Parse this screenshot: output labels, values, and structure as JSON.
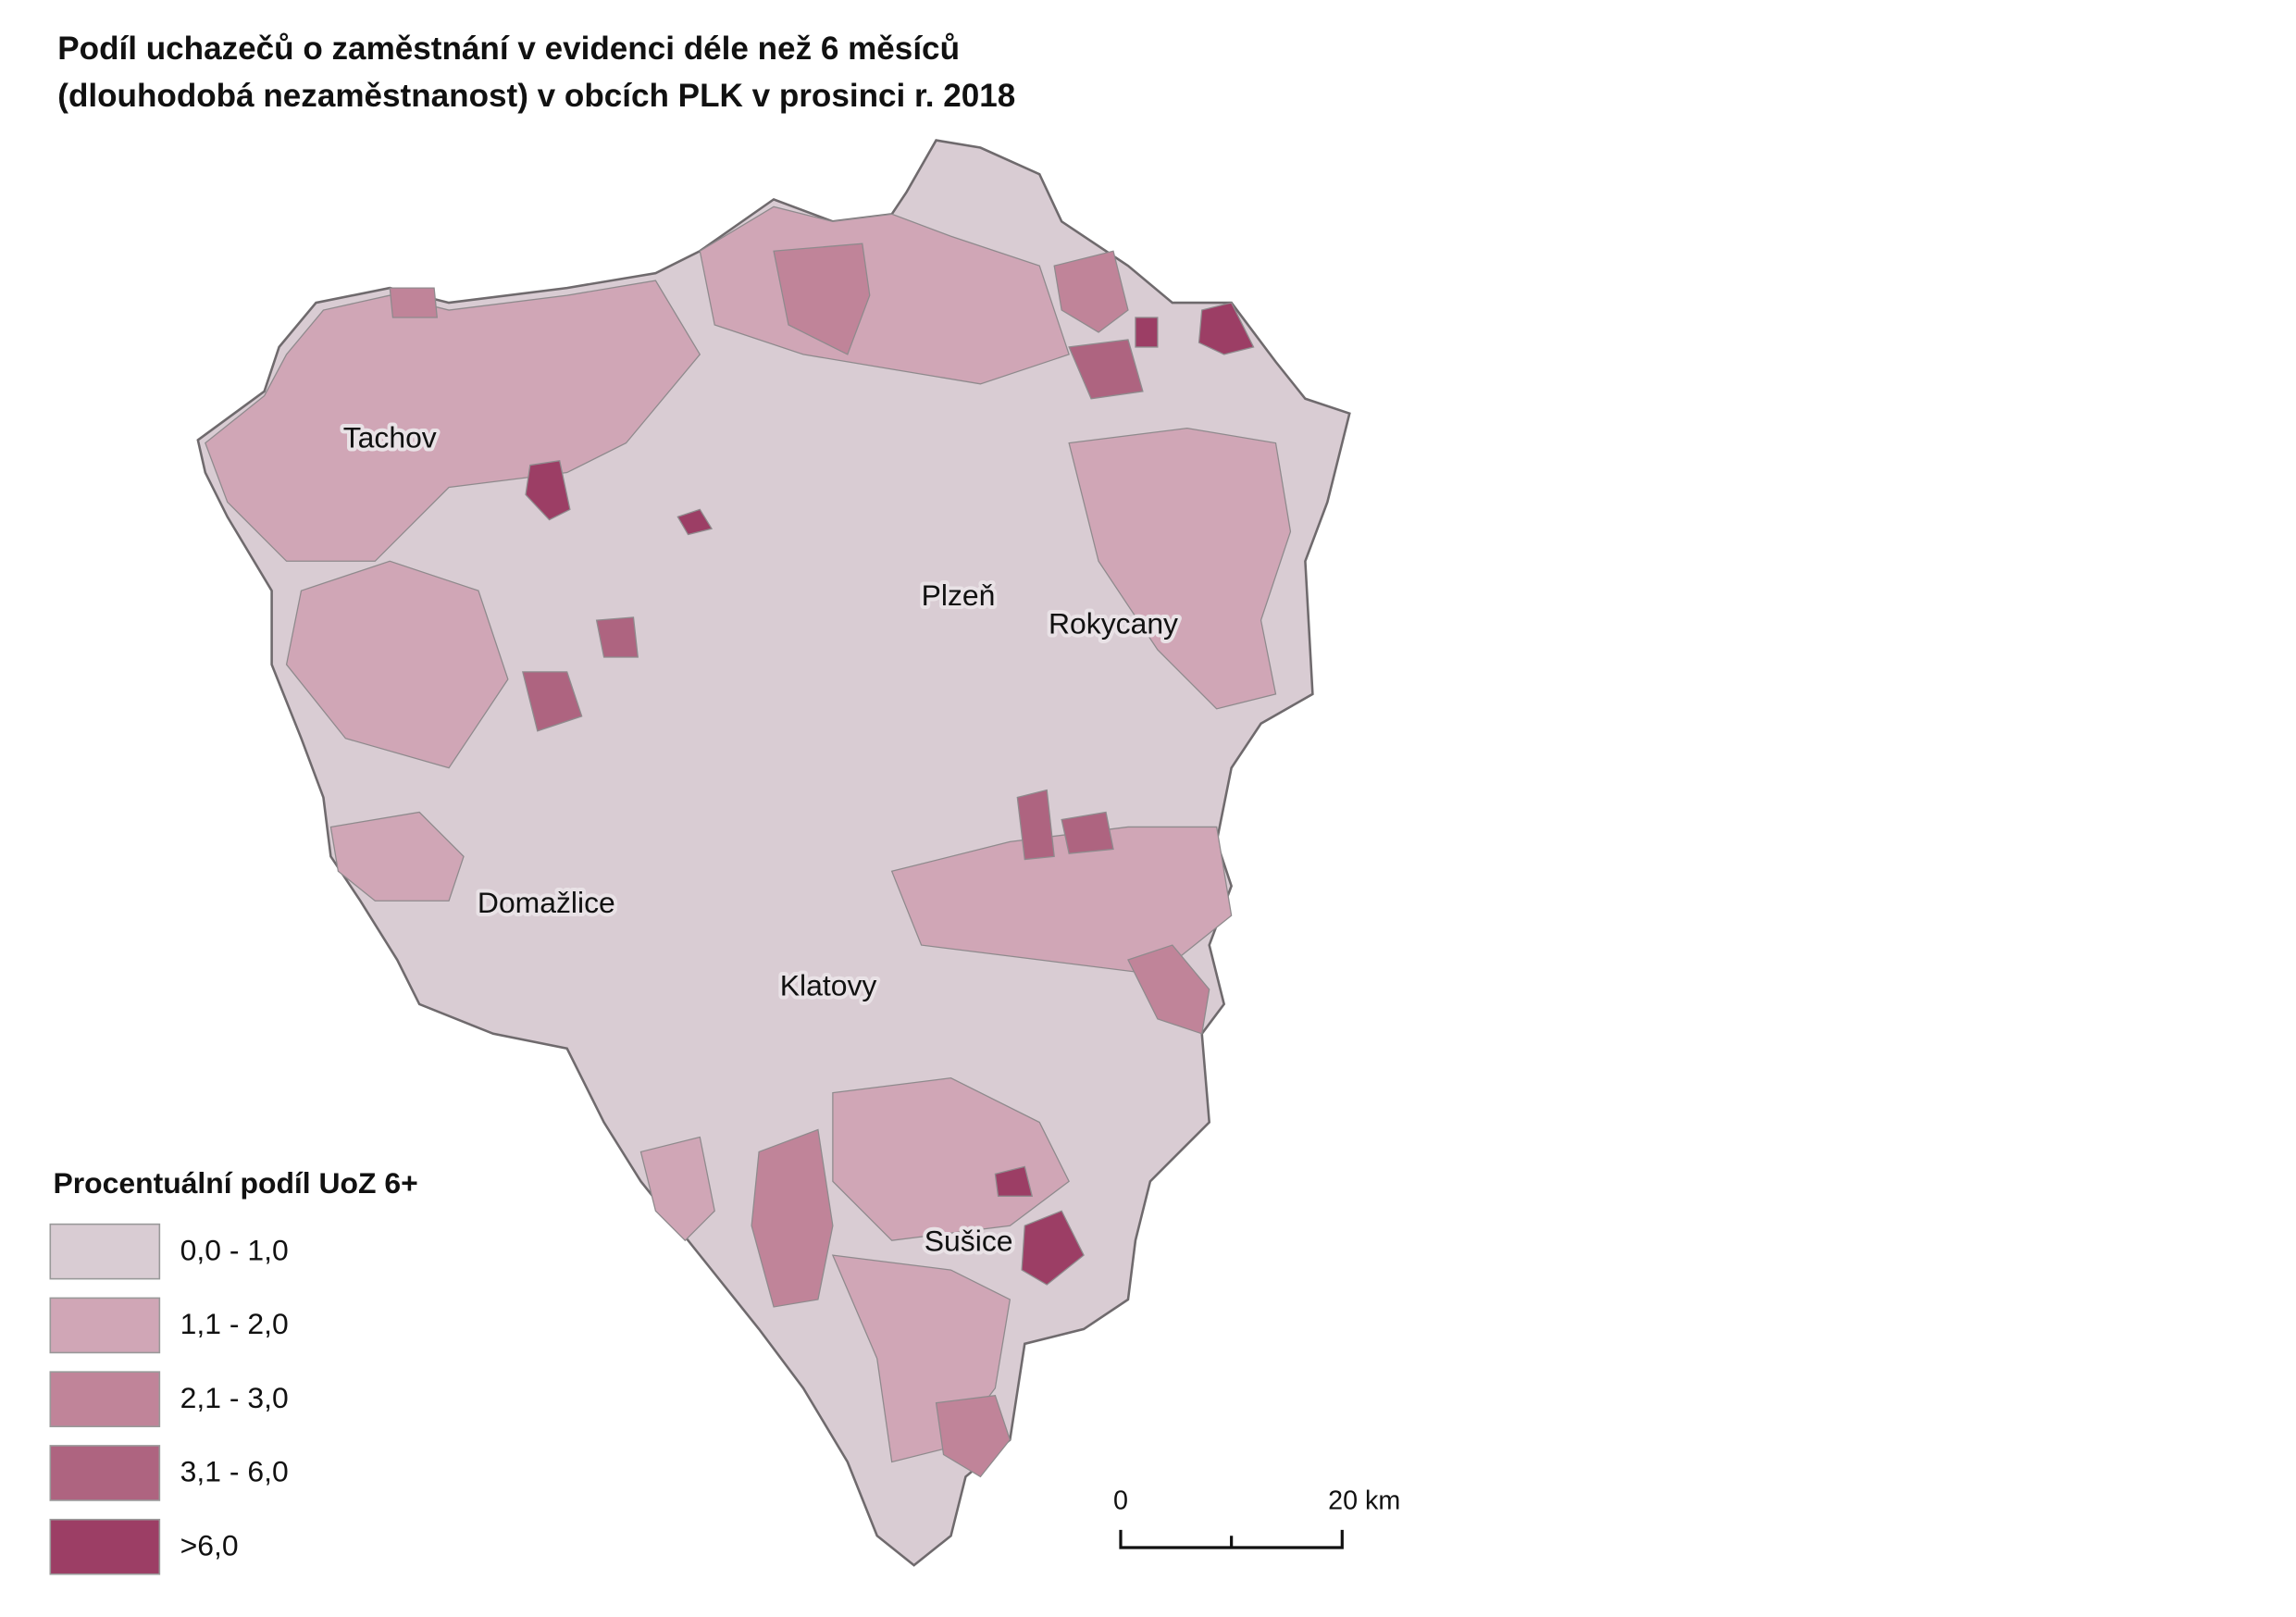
{
  "title": [
    "Podíl uchazečů o zaměstnání v evidenci déle než 6 měsíců",
    "(dlouhodobá nezaměstnanost) v obcích PLK v prosinci r. 2018"
  ],
  "cities": [
    "Tachov",
    "Plzeň",
    "Rokycany",
    "Domažlice",
    "Klatovy",
    "Sušice"
  ],
  "legend": {
    "title": "Procentuální podíl UoZ 6+",
    "items": [
      {
        "label": "0,0 - 1,0",
        "color": "#d9ccd3"
      },
      {
        "label": "1,1 - 2,0",
        "color": "#d0a6b6"
      },
      {
        "label": "2,1 - 3,0",
        "color": "#c08499"
      },
      {
        "label": "3,1 - 6,0",
        "color": "#ae6480"
      },
      {
        "label": ">6,0",
        "color": "#9c3e65"
      }
    ]
  },
  "scale_bar": {
    "labels": [
      "0",
      "20 km"
    ]
  }
}
